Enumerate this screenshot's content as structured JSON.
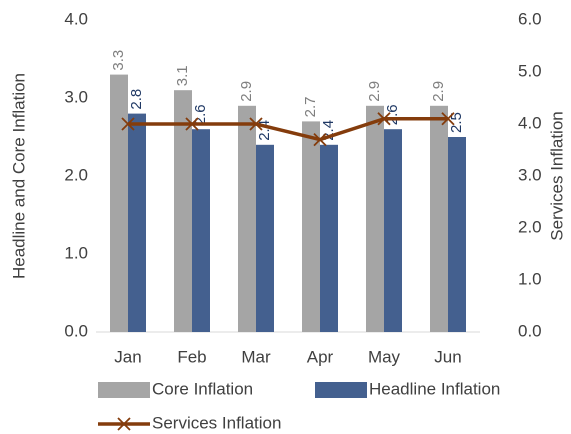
{
  "chart_data": {
    "type": "bar_line",
    "categories": [
      "Jan",
      "Feb",
      "Mar",
      "Apr",
      "May",
      "Jun"
    ],
    "series": [
      {
        "name": "Core Inflation",
        "type": "bar",
        "color": "#a5a5a5",
        "label_color": "#7f7f7f",
        "values": [
          3.3,
          3.1,
          2.9,
          2.7,
          2.9,
          2.9
        ]
      },
      {
        "name": "Headline Inflation",
        "type": "bar",
        "color": "#44608f",
        "label_color": "#1f3864",
        "values": [
          2.8,
          2.6,
          2.4,
          2.4,
          2.6,
          2.5
        ]
      },
      {
        "name": "Services Inflation",
        "type": "line",
        "axis": "y2",
        "color": "#843c0c",
        "marker": "x",
        "values": [
          4.0,
          4.0,
          4.0,
          3.7,
          4.1,
          4.1
        ]
      }
    ],
    "y_label": "Headline and Core Inflation",
    "y2_label": "Services Inflation",
    "ylim": [
      0,
      4
    ],
    "yticks": [
      {
        "value": 0,
        "label": "0.0"
      },
      {
        "value": 1,
        "label": "1.0"
      },
      {
        "value": 2,
        "label": "2.0"
      },
      {
        "value": 3,
        "label": "3.0"
      },
      {
        "value": 4,
        "label": "4.0"
      }
    ],
    "y2lim": [
      0,
      6
    ],
    "y2ticks": [
      {
        "value": 0,
        "label": "0.0"
      },
      {
        "value": 1,
        "label": "1.0"
      },
      {
        "value": 2,
        "label": "2.0"
      },
      {
        "value": 3,
        "label": "3.0"
      },
      {
        "value": 4,
        "label": "4.0"
      },
      {
        "value": 5,
        "label": "5.0"
      },
      {
        "value": 6,
        "label": "6.0"
      }
    ],
    "grid": false,
    "legend": "bottom"
  }
}
